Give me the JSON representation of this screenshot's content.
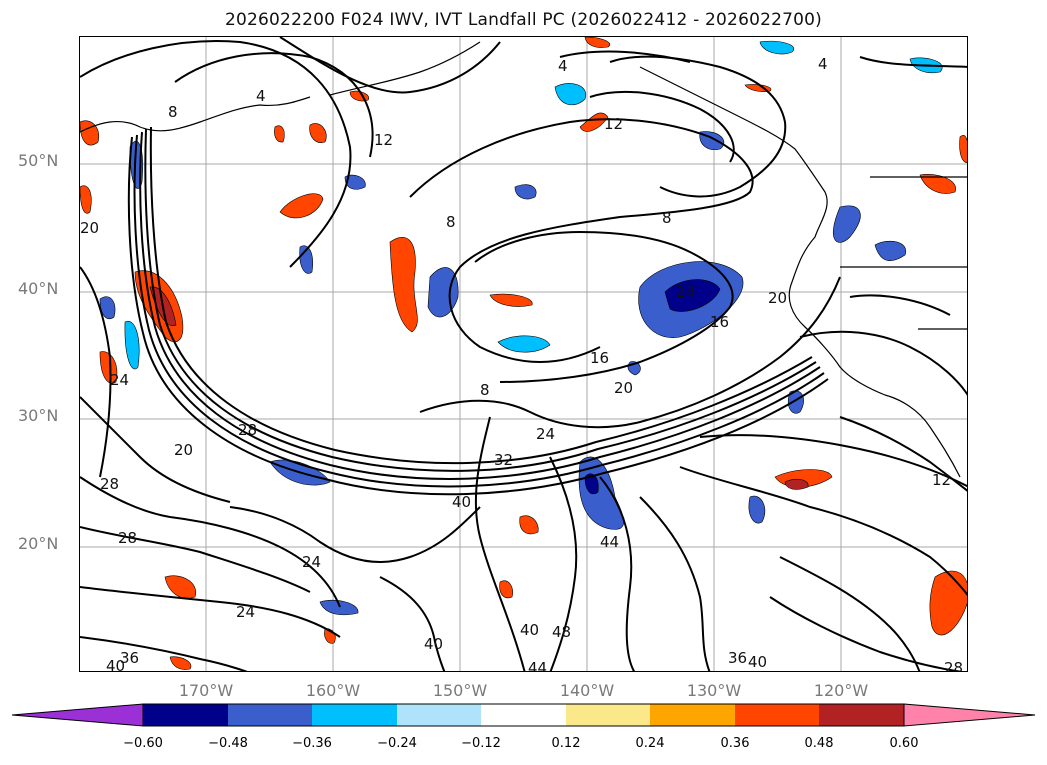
{
  "title": "2026022200 F024 IWV, IVT Landfall PC (2026022412 - 2026022700)",
  "colors": {
    "land_line": "#000000",
    "contour": "#000000",
    "grid": "#9a9a9a",
    "axis_label": "#7a7a7a"
  },
  "lat_labels": [
    "50°N",
    "40°N",
    "30°N",
    "20°N"
  ],
  "lon_labels": [
    "170°W",
    "160°W",
    "150°W",
    "140°W",
    "130°W",
    "120°W"
  ],
  "colorbar": {
    "colors": [
      "#9b30d6",
      "#00008b",
      "#3a5fcd",
      "#00bfff",
      "#afe3fb",
      "#ffffff",
      "#fbe88a",
      "#ffa500",
      "#ff4500",
      "#b22222",
      "#ff82ab"
    ],
    "tick_labels": [
      "−0.60",
      "−0.48",
      "−0.36",
      "−0.24",
      "−0.12",
      "0.12",
      "0.24",
      "0.36",
      "0.48",
      "0.60"
    ]
  },
  "contour_labels": [
    "4",
    "8",
    "12",
    "16",
    "20",
    "24",
    "28",
    "32",
    "36",
    "40",
    "44",
    "48"
  ]
}
